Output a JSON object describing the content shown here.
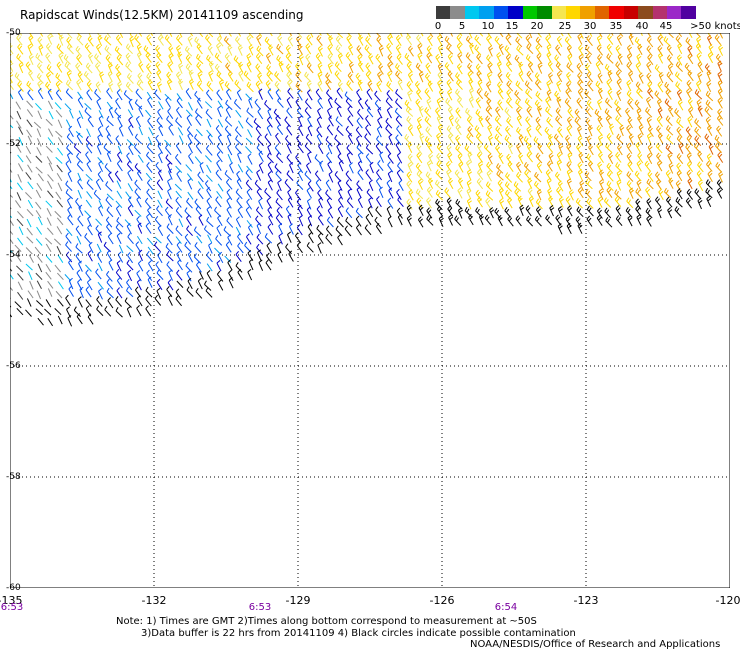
{
  "title": "Rapidscat Winds(12.5KM) 20141109 ascending",
  "legend": {
    "colors": [
      "#3c3c3c",
      "#8c8c8c",
      "#00c8f0",
      "#00a0f0",
      "#0050f0",
      "#0000c8",
      "#00c800",
      "#008c00",
      "#f5e650",
      "#ffd700",
      "#f0a000",
      "#e06400",
      "#f00000",
      "#c80000",
      "#8c4b1e",
      "#b4326e",
      "#9b28c8",
      "#5000a0"
    ],
    "labels": [
      "0",
      "5",
      "10",
      "15",
      "20",
      "25",
      "30",
      "35",
      "40",
      "45",
      ">50 knots"
    ],
    "speed_bins_knots": [
      0,
      5,
      10,
      15,
      20,
      25,
      30,
      35,
      40,
      45,
      50
    ]
  },
  "map": {
    "lon_range": [
      -135,
      -120
    ],
    "lat_range": [
      -60,
      -50
    ],
    "lon_labels": [
      "-135",
      "-132",
      "-129",
      "-126",
      "-123",
      "-120"
    ],
    "lat_labels": [
      "-50",
      "-52",
      "-54",
      "-56",
      "-58",
      "-60"
    ],
    "time_labels": [
      "6:53",
      "6:53",
      "6:54"
    ]
  },
  "notes": {
    "line1": "Note: 1) Times are GMT 2)Times along bottom correspond to measurement at ~50S",
    "line2": "3)Data buffer is 22 hrs from 20141109 4) Black circles indicate possible contamination",
    "credit": "NOAA/NESDIS/Office of Research and Applications"
  }
}
